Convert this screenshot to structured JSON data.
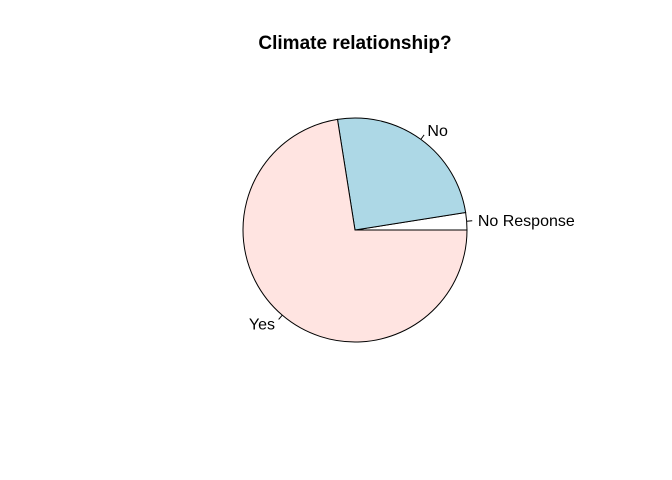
{
  "chart_data": {
    "type": "pie",
    "title": "Climate relationship?",
    "slices": [
      {
        "label": "No Response",
        "value": 2.5,
        "color": "#ffffff"
      },
      {
        "label": "No",
        "value": 25.0,
        "color": "#add8e6"
      },
      {
        "label": "Yes",
        "value": 72.5,
        "color": "#ffe4e1"
      }
    ],
    "start_angle_deg": 0,
    "direction": "counterclockwise",
    "legend": "none"
  }
}
